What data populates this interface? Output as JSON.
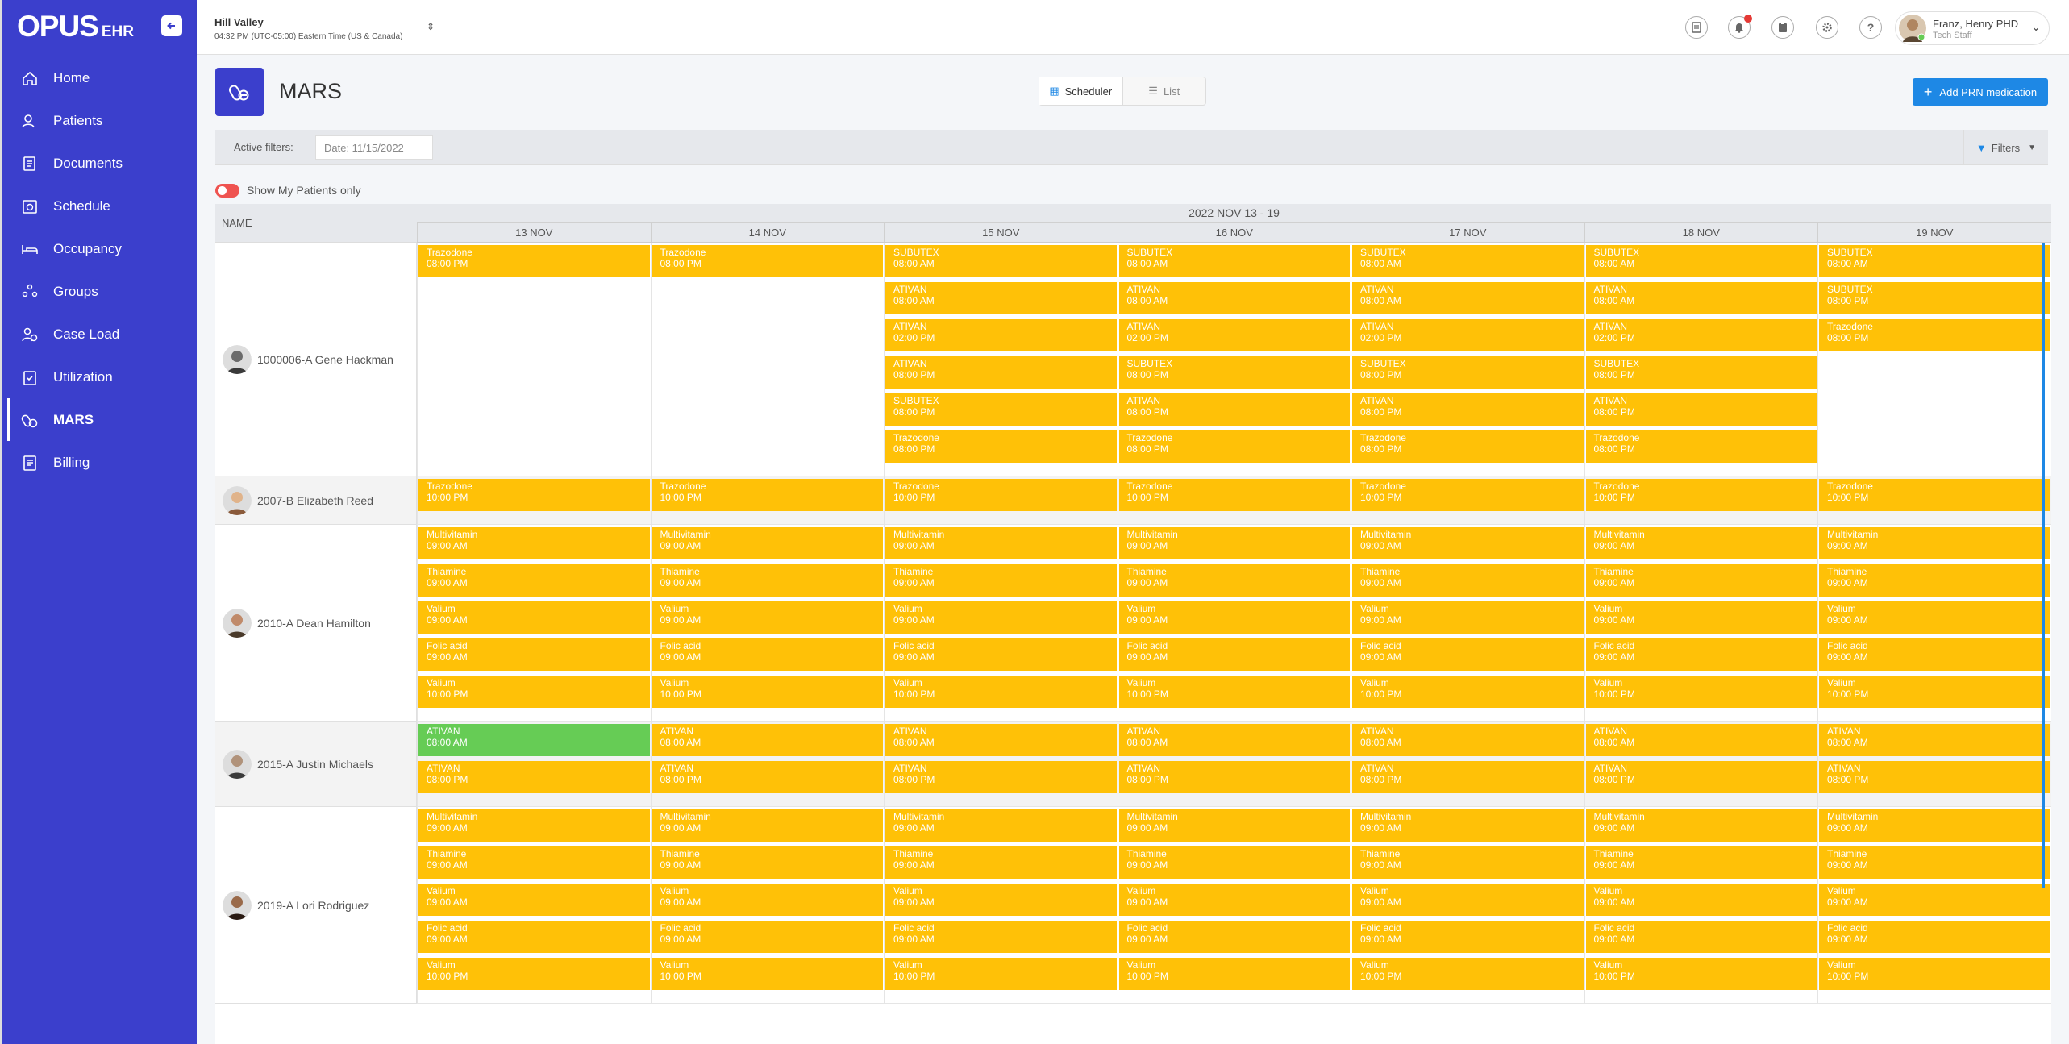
{
  "app": {
    "logo_big": "OPUS",
    "logo_small": "EHR"
  },
  "sidebar": {
    "items": [
      {
        "label": "Home",
        "icon": "home-icon"
      },
      {
        "label": "Patients",
        "icon": "patients-icon"
      },
      {
        "label": "Documents",
        "icon": "documents-icon"
      },
      {
        "label": "Schedule",
        "icon": "schedule-icon"
      },
      {
        "label": "Occupancy",
        "icon": "bed-icon"
      },
      {
        "label": "Groups",
        "icon": "groups-icon"
      },
      {
        "label": "Case Load",
        "icon": "caseload-icon"
      },
      {
        "label": "Utilization",
        "icon": "clipboard-icon"
      },
      {
        "label": "MARS",
        "icon": "pills-icon",
        "active": true
      },
      {
        "label": "Billing",
        "icon": "billing-icon"
      }
    ]
  },
  "header": {
    "location": "Hill Valley",
    "time": "04:32 PM (UTC-05:00) Eastern Time (US & Canada)",
    "user_name": "Franz, Henry PHD",
    "user_role": "Tech Staff",
    "icons": [
      "fax-icon",
      "bell-icon",
      "clipboard-icon",
      "gear-icon",
      "help-icon"
    ]
  },
  "page": {
    "title": "MARS",
    "view_scheduler": "Scheduler",
    "view_list": "List",
    "add_button": "Add PRN medication",
    "active_filters_label": "Active filters:",
    "filter_chip": "Date: 11/15/2022",
    "filters_button": "Filters",
    "toggle_label": "Show My Patients only",
    "accent_color": "#3b3fcc",
    "event_color": "#ffc107",
    "given_color": "#66cc55"
  },
  "schedule": {
    "name_header": "NAME",
    "week_label": "2022 NOV 13 - 19",
    "days": [
      "13 NOV",
      "14 NOV",
      "15 NOV",
      "16 NOV",
      "17 NOV",
      "18 NOV",
      "19 NOV"
    ],
    "patients": [
      {
        "name": "1000006-A Gene Hackman",
        "days": [
          [
            {
              "med": "Trazodone",
              "time": "08:00 PM"
            }
          ],
          [
            {
              "med": "Trazodone",
              "time": "08:00 PM"
            }
          ],
          [
            {
              "med": "SUBUTEX",
              "time": "08:00 AM"
            },
            {
              "med": "ATIVAN",
              "time": "08:00 AM"
            },
            {
              "med": "ATIVAN",
              "time": "02:00 PM"
            },
            {
              "med": "ATIVAN",
              "time": "08:00 PM"
            },
            {
              "med": "SUBUTEX",
              "time": "08:00 PM"
            },
            {
              "med": "Trazodone",
              "time": "08:00 PM"
            }
          ],
          [
            {
              "med": "SUBUTEX",
              "time": "08:00 AM"
            },
            {
              "med": "ATIVAN",
              "time": "08:00 AM"
            },
            {
              "med": "ATIVAN",
              "time": "02:00 PM"
            },
            {
              "med": "SUBUTEX",
              "time": "08:00 PM"
            },
            {
              "med": "ATIVAN",
              "time": "08:00 PM"
            },
            {
              "med": "Trazodone",
              "time": "08:00 PM"
            }
          ],
          [
            {
              "med": "SUBUTEX",
              "time": "08:00 AM"
            },
            {
              "med": "ATIVAN",
              "time": "08:00 AM"
            },
            {
              "med": "ATIVAN",
              "time": "02:00 PM"
            },
            {
              "med": "SUBUTEX",
              "time": "08:00 PM"
            },
            {
              "med": "ATIVAN",
              "time": "08:00 PM"
            },
            {
              "med": "Trazodone",
              "time": "08:00 PM"
            }
          ],
          [
            {
              "med": "SUBUTEX",
              "time": "08:00 AM"
            },
            {
              "med": "ATIVAN",
              "time": "08:00 AM"
            },
            {
              "med": "ATIVAN",
              "time": "02:00 PM"
            },
            {
              "med": "SUBUTEX",
              "time": "08:00 PM"
            },
            {
              "med": "ATIVAN",
              "time": "08:00 PM"
            },
            {
              "med": "Trazodone",
              "time": "08:00 PM"
            }
          ],
          [
            {
              "med": "SUBUTEX",
              "time": "08:00 AM"
            },
            {
              "med": "SUBUTEX",
              "time": "08:00 PM"
            },
            {
              "med": "Trazodone",
              "time": "08:00 PM"
            }
          ]
        ]
      },
      {
        "name": "2007-B Elizabeth Reed",
        "days": [
          [
            {
              "med": "Trazodone",
              "time": "10:00 PM"
            }
          ],
          [
            {
              "med": "Trazodone",
              "time": "10:00 PM"
            }
          ],
          [
            {
              "med": "Trazodone",
              "time": "10:00 PM"
            }
          ],
          [
            {
              "med": "Trazodone",
              "time": "10:00 PM"
            }
          ],
          [
            {
              "med": "Trazodone",
              "time": "10:00 PM"
            }
          ],
          [
            {
              "med": "Trazodone",
              "time": "10:00 PM"
            }
          ],
          [
            {
              "med": "Trazodone",
              "time": "10:00 PM"
            }
          ]
        ]
      },
      {
        "name": "2010-A Dean Hamilton",
        "days": [
          [
            {
              "med": "Multivitamin",
              "time": "09:00 AM"
            },
            {
              "med": "Thiamine",
              "time": "09:00 AM"
            },
            {
              "med": "Valium",
              "time": "09:00 AM"
            },
            {
              "med": "Folic acid",
              "time": "09:00 AM"
            },
            {
              "med": "Valium",
              "time": "10:00 PM"
            }
          ],
          [
            {
              "med": "Multivitamin",
              "time": "09:00 AM"
            },
            {
              "med": "Thiamine",
              "time": "09:00 AM"
            },
            {
              "med": "Valium",
              "time": "09:00 AM"
            },
            {
              "med": "Folic acid",
              "time": "09:00 AM"
            },
            {
              "med": "Valium",
              "time": "10:00 PM"
            }
          ],
          [
            {
              "med": "Multivitamin",
              "time": "09:00 AM"
            },
            {
              "med": "Thiamine",
              "time": "09:00 AM"
            },
            {
              "med": "Valium",
              "time": "09:00 AM"
            },
            {
              "med": "Folic acid",
              "time": "09:00 AM"
            },
            {
              "med": "Valium",
              "time": "10:00 PM"
            }
          ],
          [
            {
              "med": "Multivitamin",
              "time": "09:00 AM"
            },
            {
              "med": "Thiamine",
              "time": "09:00 AM"
            },
            {
              "med": "Valium",
              "time": "09:00 AM"
            },
            {
              "med": "Folic acid",
              "time": "09:00 AM"
            },
            {
              "med": "Valium",
              "time": "10:00 PM"
            }
          ],
          [
            {
              "med": "Multivitamin",
              "time": "09:00 AM"
            },
            {
              "med": "Thiamine",
              "time": "09:00 AM"
            },
            {
              "med": "Valium",
              "time": "09:00 AM"
            },
            {
              "med": "Folic acid",
              "time": "09:00 AM"
            },
            {
              "med": "Valium",
              "time": "10:00 PM"
            }
          ],
          [
            {
              "med": "Multivitamin",
              "time": "09:00 AM"
            },
            {
              "med": "Thiamine",
              "time": "09:00 AM"
            },
            {
              "med": "Valium",
              "time": "09:00 AM"
            },
            {
              "med": "Folic acid",
              "time": "09:00 AM"
            },
            {
              "med": "Valium",
              "time": "10:00 PM"
            }
          ],
          [
            {
              "med": "Multivitamin",
              "time": "09:00 AM"
            },
            {
              "med": "Thiamine",
              "time": "09:00 AM"
            },
            {
              "med": "Valium",
              "time": "09:00 AM"
            },
            {
              "med": "Folic acid",
              "time": "09:00 AM"
            },
            {
              "med": "Valium",
              "time": "10:00 PM"
            }
          ]
        ]
      },
      {
        "name": "2015-A Justin Michaels",
        "days": [
          [
            {
              "med": "ATIVAN",
              "time": "08:00 AM",
              "given": true
            },
            {
              "med": "ATIVAN",
              "time": "08:00 PM"
            }
          ],
          [
            {
              "med": "ATIVAN",
              "time": "08:00 AM"
            },
            {
              "med": "ATIVAN",
              "time": "08:00 PM"
            }
          ],
          [
            {
              "med": "ATIVAN",
              "time": "08:00 AM"
            },
            {
              "med": "ATIVAN",
              "time": "08:00 PM"
            }
          ],
          [
            {
              "med": "ATIVAN",
              "time": "08:00 AM"
            },
            {
              "med": "ATIVAN",
              "time": "08:00 PM"
            }
          ],
          [
            {
              "med": "ATIVAN",
              "time": "08:00 AM"
            },
            {
              "med": "ATIVAN",
              "time": "08:00 PM"
            }
          ],
          [
            {
              "med": "ATIVAN",
              "time": "08:00 AM"
            },
            {
              "med": "ATIVAN",
              "time": "08:00 PM"
            }
          ],
          [
            {
              "med": "ATIVAN",
              "time": "08:00 AM"
            },
            {
              "med": "ATIVAN",
              "time": "08:00 PM"
            }
          ]
        ]
      },
      {
        "name": "2019-A Lori Rodriguez",
        "days": [
          [
            {
              "med": "Multivitamin",
              "time": "09:00 AM"
            },
            {
              "med": "Thiamine",
              "time": "09:00 AM"
            },
            {
              "med": "Valium",
              "time": "09:00 AM"
            },
            {
              "med": "Folic acid",
              "time": "09:00 AM"
            },
            {
              "med": "Valium",
              "time": "10:00 PM"
            }
          ],
          [
            {
              "med": "Multivitamin",
              "time": "09:00 AM"
            },
            {
              "med": "Thiamine",
              "time": "09:00 AM"
            },
            {
              "med": "Valium",
              "time": "09:00 AM"
            },
            {
              "med": "Folic acid",
              "time": "09:00 AM"
            },
            {
              "med": "Valium",
              "time": "10:00 PM"
            }
          ],
          [
            {
              "med": "Multivitamin",
              "time": "09:00 AM"
            },
            {
              "med": "Thiamine",
              "time": "09:00 AM"
            },
            {
              "med": "Valium",
              "time": "09:00 AM"
            },
            {
              "med": "Folic acid",
              "time": "09:00 AM"
            },
            {
              "med": "Valium",
              "time": "10:00 PM"
            }
          ],
          [
            {
              "med": "Multivitamin",
              "time": "09:00 AM"
            },
            {
              "med": "Thiamine",
              "time": "09:00 AM"
            },
            {
              "med": "Valium",
              "time": "09:00 AM"
            },
            {
              "med": "Folic acid",
              "time": "09:00 AM"
            },
            {
              "med": "Valium",
              "time": "10:00 PM"
            }
          ],
          [
            {
              "med": "Multivitamin",
              "time": "09:00 AM"
            },
            {
              "med": "Thiamine",
              "time": "09:00 AM"
            },
            {
              "med": "Valium",
              "time": "09:00 AM"
            },
            {
              "med": "Folic acid",
              "time": "09:00 AM"
            },
            {
              "med": "Valium",
              "time": "10:00 PM"
            }
          ],
          [
            {
              "med": "Multivitamin",
              "time": "09:00 AM"
            },
            {
              "med": "Thiamine",
              "time": "09:00 AM"
            },
            {
              "med": "Valium",
              "time": "09:00 AM"
            },
            {
              "med": "Folic acid",
              "time": "09:00 AM"
            },
            {
              "med": "Valium",
              "time": "10:00 PM"
            }
          ],
          [
            {
              "med": "Multivitamin",
              "time": "09:00 AM"
            },
            {
              "med": "Thiamine",
              "time": "09:00 AM"
            },
            {
              "med": "Valium",
              "time": "09:00 AM"
            },
            {
              "med": "Folic acid",
              "time": "09:00 AM"
            },
            {
              "med": "Valium",
              "time": "10:00 PM"
            }
          ]
        ]
      }
    ]
  }
}
